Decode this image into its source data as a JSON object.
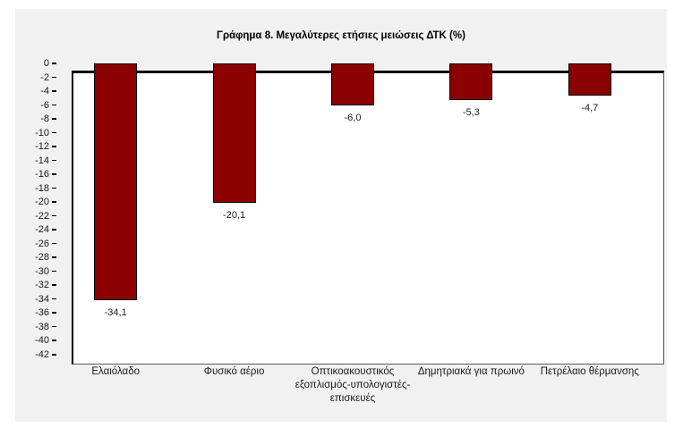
{
  "chart_data": {
    "type": "bar",
    "title": "Γράφημα 8. Μεγαλύτερες ετήσιες μειώσεις ΔΤΚ (%)",
    "categories": [
      "Ελαιόλαδο",
      "Φυσικό αέριο",
      "Οπτικοακουστικός εξοπλισμός-υπολογιστές-επισκευές",
      "Δημητριακά για πρωινό",
      "Πετρέλαιο θέρμανσης"
    ],
    "values": [
      -34.1,
      -20.1,
      -6.0,
      -5.3,
      -4.7
    ],
    "value_labels": [
      "-34,1",
      "-20,1",
      "-6,0",
      "-5,3",
      "-4,7"
    ],
    "xlabel": "",
    "ylabel": "",
    "ylim": [
      -42,
      0
    ],
    "ytick_step": 2,
    "grid": false,
    "legend": "none",
    "colors": {
      "bar_fill": "#8B0000",
      "bar_border": "#000000",
      "panel_background": "#F1F1F2",
      "plot_background": "#FFFFFF",
      "axis_line": "#000000",
      "plot_border": "#595959",
      "text": "#1a1a1a"
    }
  }
}
